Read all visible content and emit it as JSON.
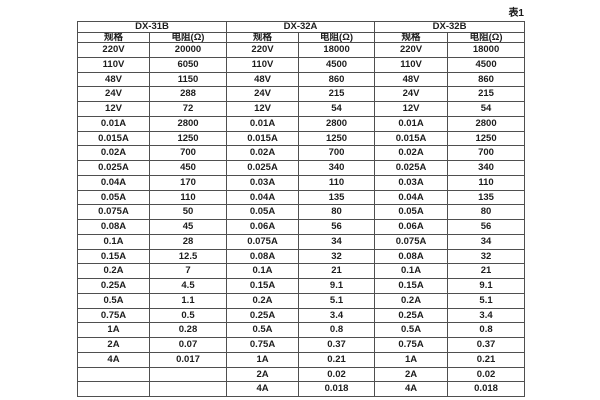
{
  "caption": "表1",
  "table": {
    "groups": [
      {
        "name": "DX-31B"
      },
      {
        "name": "DX-32A"
      },
      {
        "name": "DX-32B"
      }
    ],
    "col_headers": {
      "spec": "规格",
      "resistance": "电阻(Ω)"
    },
    "rows": [
      [
        "220V",
        "20000",
        "220V",
        "18000",
        "220V",
        "18000"
      ],
      [
        "110V",
        "6050",
        "110V",
        "4500",
        "110V",
        "4500"
      ],
      [
        "48V",
        "1150",
        "48V",
        "860",
        "48V",
        "860"
      ],
      [
        "24V",
        "288",
        "24V",
        "215",
        "24V",
        "215"
      ],
      [
        "12V",
        "72",
        "12V",
        "54",
        "12V",
        "54"
      ],
      [
        "0.01A",
        "2800",
        "0.01A",
        "2800",
        "0.01A",
        "2800"
      ],
      [
        "0.015A",
        "1250",
        "0.015A",
        "1250",
        "0.015A",
        "1250"
      ],
      [
        "0.02A",
        "700",
        "0.02A",
        "700",
        "0.02A",
        "700"
      ],
      [
        "0.025A",
        "450",
        "0.025A",
        "340",
        "0.025A",
        "340"
      ],
      [
        "0.04A",
        "170",
        "0.03A",
        "110",
        "0.03A",
        "110"
      ],
      [
        "0.05A",
        "110",
        "0.04A",
        "135",
        "0.04A",
        "135"
      ],
      [
        "0.075A",
        "50",
        "0.05A",
        "80",
        "0.05A",
        "80"
      ],
      [
        "0.08A",
        "45",
        "0.06A",
        "56",
        "0.06A",
        "56"
      ],
      [
        "0.1A",
        "28",
        "0.075A",
        "34",
        "0.075A",
        "34"
      ],
      [
        "0.15A",
        "12.5",
        "0.08A",
        "32",
        "0.08A",
        "32"
      ],
      [
        "0.2A",
        "7",
        "0.1A",
        "21",
        "0.1A",
        "21"
      ],
      [
        "0.25A",
        "4.5",
        "0.15A",
        "9.1",
        "0.15A",
        "9.1"
      ],
      [
        "0.5A",
        "1.1",
        "0.2A",
        "5.1",
        "0.2A",
        "5.1"
      ],
      [
        "0.75A",
        "0.5",
        "0.25A",
        "3.4",
        "0.25A",
        "3.4"
      ],
      [
        "1A",
        "0.28",
        "0.5A",
        "0.8",
        "0.5A",
        "0.8"
      ],
      [
        "2A",
        "0.07",
        "0.75A",
        "0.37",
        "0.75A",
        "0.37"
      ],
      [
        "4A",
        "0.017",
        "1A",
        "0.21",
        "1A",
        "0.21"
      ],
      [
        "",
        "",
        "2A",
        "0.02",
        "2A",
        "0.02"
      ],
      [
        "",
        "",
        "4A",
        "0.018",
        "4A",
        "0.018"
      ]
    ]
  }
}
